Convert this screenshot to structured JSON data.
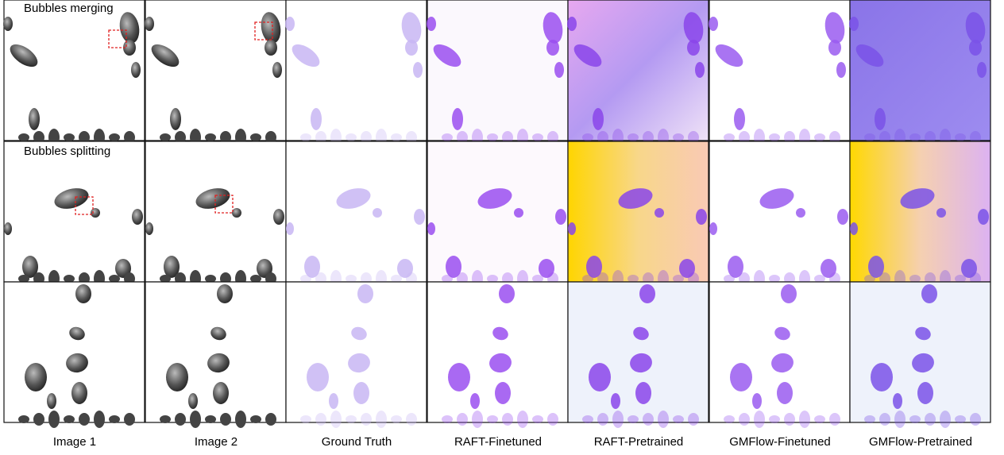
{
  "row_labels": [
    "Bubbles merging",
    "Bubbles splitting"
  ],
  "column_labels": [
    "Image 1",
    "Image 2",
    "Ground Truth",
    "RAFT-Finetuned",
    "RAFT-Pretrained",
    "GMFlow-Finetuned",
    "GMFlow-Pretrained"
  ]
}
